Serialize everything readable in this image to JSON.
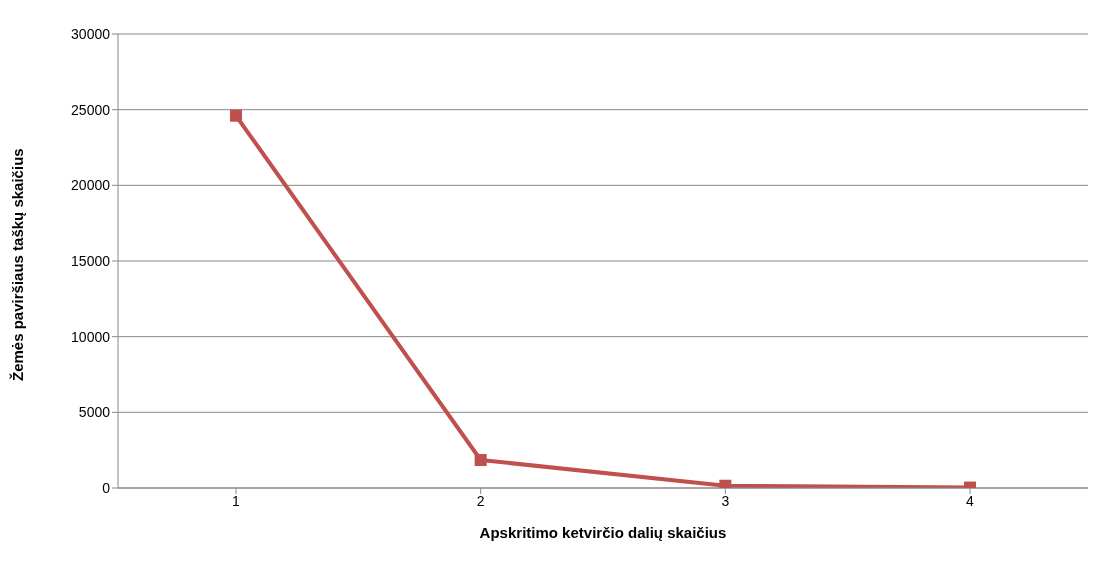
{
  "chart_data": {
    "type": "line",
    "xlabel": "Apskritimo ketvirčio dalių skaičius",
    "ylabel": "Žemės paviršiaus taškų skaičius",
    "categories": [
      "1",
      "2",
      "3",
      "4"
    ],
    "series": [
      {
        "color": "#c0504d",
        "values": [
          24600,
          1850,
          150,
          30
        ]
      }
    ],
    "ylim": [
      0,
      30000
    ],
    "yticks": [
      0,
      5000,
      10000,
      15000,
      20000,
      25000,
      30000
    ],
    "grid": "y",
    "marker": "square",
    "legend": false
  }
}
